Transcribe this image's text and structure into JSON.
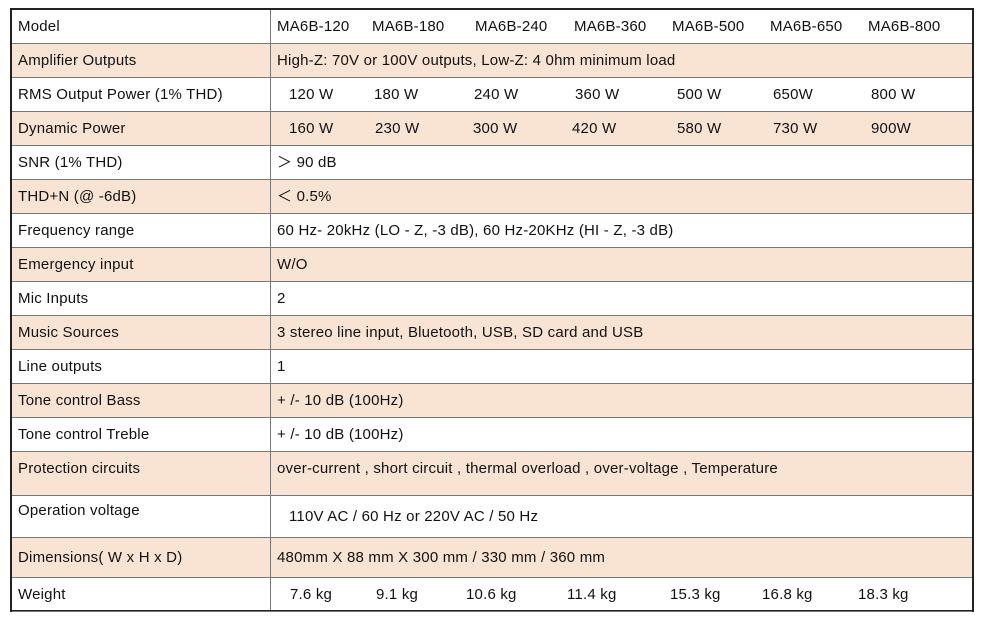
{
  "table": {
    "rows": [
      {
        "label": "Model",
        "values": [
          "MA6B-120",
          "MA6B-180",
          "MA6B-240",
          "MA6B-360",
          "MA6B-500",
          "MA6B-650",
          "MA6B-800"
        ]
      },
      {
        "label": "Amplifier Outputs",
        "text": "High-Z: 70V or 100V outputs, Low-Z: 4 0hm minimum load"
      },
      {
        "label": "RMS Output Power (1% THD)",
        "values": [
          "120 W",
          "180  W",
          "240 W",
          "360 W",
          "500 W",
          "650W",
          "800 W"
        ]
      },
      {
        "label": "Dynamic Power",
        "values": [
          "160 W",
          "230  W",
          "300 W",
          "420 W",
          "580 W",
          "730 W",
          "900W"
        ]
      },
      {
        "label": "SNR (1% THD)",
        "text": "＞ 90 dB"
      },
      {
        "label": "THD+N (@ -6dB)",
        "text": "＜ 0.5%"
      },
      {
        "label": "Frequency range",
        "text": "60 Hz- 20kHz (LO - Z, -3 dB), 60 Hz-20KHz (HI - Z, -3 dB)"
      },
      {
        "label": "Emergency input",
        "text": "W/O"
      },
      {
        "label": "Mic Inputs",
        "text": "2"
      },
      {
        "label": "Music Sources",
        "text": "3 stereo line input, Bluetooth, USB, SD card and USB"
      },
      {
        "label": "Line outputs",
        "text": "1"
      },
      {
        "label": "Tone control Bass",
        "text": "+ /-  10 dB (100Hz)"
      },
      {
        "label": "Tone control Treble",
        "text": "+ /-  10 dB (100Hz)"
      },
      {
        "label": "Protection circuits",
        "text": "over-current ,  short circuit ,  thermal overload ,  over-voltage ,  Temperature"
      },
      {
        "label": "Operation voltage",
        "text": "110V AC / 60 Hz or 220V AC / 50 Hz"
      },
      {
        "label": "Dimensions( W x H x D)",
        "text": "480mm X 88 mm X 300 mm  / 330 mm / 360 mm"
      },
      {
        "label": "Weight",
        "values": [
          "7.6 kg",
          "9.1  kg",
          "10.6 kg",
          "11.4 kg",
          "15.3 kg",
          "16.8 kg",
          "18.3 kg"
        ]
      }
    ]
  }
}
